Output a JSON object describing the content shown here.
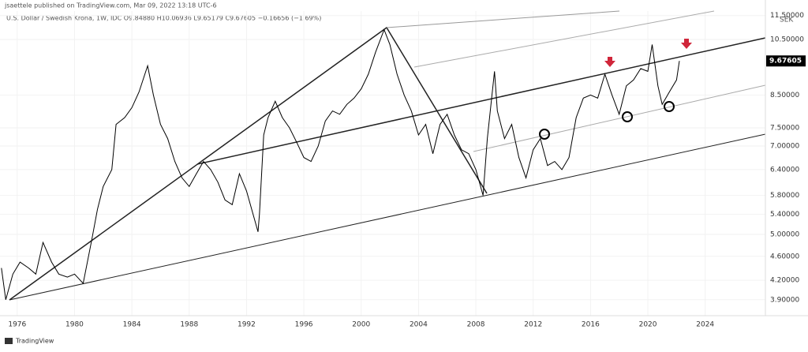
{
  "header": {
    "publisher": "jsaettele published on TradingView.com, Mar 09, 2022 13:18 UTC-6",
    "legend": "U.S. Dollar / Swedish Krona, 1W, IDC  O9.84880 H10.06936 L9.65179 C9.67605 −0.16656 (−1.69%)",
    "footer": "TradingView"
  },
  "chart_data": {
    "type": "line",
    "log_scale": true,
    "unit": "SEK",
    "color": "#000000",
    "last_value": 9.67605,
    "xlim": [
      1974.8,
      2028.2
    ],
    "ylim": [
      3.67,
      11.7
    ],
    "xticks": [
      1976,
      1980,
      1984,
      1988,
      1992,
      1996,
      2000,
      2004,
      2008,
      2012,
      2016,
      2020,
      2024
    ],
    "yticks": [
      {
        "value": 3.9,
        "label": "3.90000"
      },
      {
        "value": 4.2,
        "label": "4.20000"
      },
      {
        "value": 4.6,
        "label": "4.60000"
      },
      {
        "value": 5.0,
        "label": "5.00000"
      },
      {
        "value": 5.4,
        "label": "5.40000"
      },
      {
        "value": 5.8,
        "label": "5.80000"
      },
      {
        "value": 6.4,
        "label": "6.40000"
      },
      {
        "value": 7.0,
        "label": "7.00000"
      },
      {
        "value": 7.5,
        "label": "7.50000"
      },
      {
        "value": 8.5,
        "label": "8.50000"
      },
      {
        "value": 10.5,
        "label": "10.50000"
      },
      {
        "value": 11.5,
        "label": "11.50000"
      }
    ],
    "x": [
      1974.9,
      1975.2,
      1975.7,
      1976.2,
      1976.8,
      1977.3,
      1977.8,
      1978.4,
      1978.9,
      1979.5,
      1980.0,
      1980.6,
      1981.2,
      1981.6,
      1982.0,
      1982.6,
      1982.9,
      1983.5,
      1984.0,
      1984.5,
      1985.1,
      1985.5,
      1986.0,
      1986.5,
      1987.0,
      1987.5,
      1988.0,
      1988.5,
      1989.0,
      1989.5,
      1990.0,
      1990.5,
      1991.0,
      1991.5,
      1992.0,
      1992.8,
      1992.9,
      1993.2,
      1993.5,
      1994.0,
      1994.5,
      1995.0,
      1995.5,
      1996.0,
      1996.5,
      1997.0,
      1997.5,
      1998.0,
      1998.5,
      1999.0,
      1999.5,
      2000.0,
      2000.5,
      2001.0,
      2001.6,
      2002.0,
      2002.5,
      2003.0,
      2003.5,
      2004.0,
      2004.5,
      2005.0,
      2005.5,
      2006.0,
      2006.5,
      2007.0,
      2007.5,
      2008.0,
      2008.5,
      2008.8,
      2009.3,
      2009.5,
      2010.0,
      2010.5,
      2011.0,
      2011.5,
      2012.0,
      2012.5,
      2013.0,
      2013.5,
      2014.0,
      2014.5,
      2015.0,
      2015.5,
      2016.0,
      2016.5,
      2017.0,
      2017.5,
      2018.0,
      2018.5,
      2019.0,
      2019.5,
      2020.0,
      2020.3,
      2020.7,
      2021.0,
      2021.5,
      2022.0,
      2022.2
    ],
    "values": [
      4.4,
      3.9,
      4.3,
      4.5,
      4.4,
      4.3,
      4.85,
      4.5,
      4.3,
      4.25,
      4.3,
      4.15,
      4.9,
      5.5,
      6.0,
      6.4,
      7.6,
      7.8,
      8.1,
      8.6,
      9.5,
      8.5,
      7.6,
      7.2,
      6.6,
      6.2,
      6.0,
      6.3,
      6.6,
      6.4,
      6.1,
      5.7,
      5.6,
      6.3,
      5.9,
      5.05,
      5.4,
      7.3,
      7.8,
      8.3,
      7.8,
      7.5,
      7.1,
      6.7,
      6.6,
      7.0,
      7.7,
      8.0,
      7.9,
      8.2,
      8.4,
      8.7,
      9.2,
      10.0,
      10.9,
      10.3,
      9.2,
      8.5,
      8.0,
      7.3,
      7.6,
      6.8,
      7.6,
      7.9,
      7.3,
      6.9,
      6.8,
      6.4,
      5.8,
      7.2,
      9.3,
      8.0,
      7.2,
      7.6,
      6.7,
      6.2,
      6.9,
      7.2,
      6.5,
      6.6,
      6.4,
      6.7,
      7.8,
      8.4,
      8.5,
      8.4,
      9.2,
      8.5,
      7.9,
      8.8,
      9.0,
      9.4,
      9.3,
      10.3,
      8.8,
      8.2,
      8.6,
      9.0,
      9.67605
    ]
  }
}
